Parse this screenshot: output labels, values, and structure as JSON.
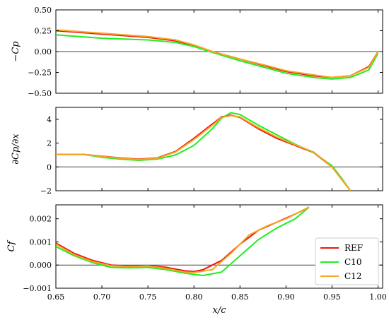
{
  "chart_data": {
    "type": "line",
    "shared_xlabel": "x/c",
    "x_ticks": [
      "0.65",
      "0.70",
      "0.75",
      "0.80",
      "0.85",
      "0.90",
      "0.95",
      "1.00"
    ],
    "xlim": [
      0.65,
      1.005
    ],
    "colors": {
      "REF": "#ee1111",
      "C10": "#22ee22",
      "C12": "#f5a623",
      "zero_line": "#444444"
    },
    "legend": {
      "placement": "lower-right of bottom panel",
      "entries": [
        "REF",
        "C10",
        "C12"
      ]
    },
    "panels": [
      {
        "id": "cp",
        "ylabel": "−Cp",
        "ylim": [
          -0.5,
          0.5
        ],
        "y_ticks": [
          "0.50",
          "0.25",
          "0.00",
          "−0.25",
          "−0.50"
        ],
        "y_tick_values": [
          0.5,
          0.25,
          0.0,
          -0.25,
          -0.5
        ],
        "zero_line": true,
        "series": [
          {
            "name": "REF",
            "points": [
              [
                0.65,
                0.25
              ],
              [
                0.7,
                0.21
              ],
              [
                0.75,
                0.17
              ],
              [
                0.78,
                0.13
              ],
              [
                0.8,
                0.07
              ],
              [
                0.82,
                0.0
              ],
              [
                0.85,
                -0.09
              ],
              [
                0.88,
                -0.18
              ],
              [
                0.9,
                -0.24
              ],
              [
                0.93,
                -0.29
              ],
              [
                0.95,
                -0.31
              ],
              [
                0.97,
                -0.29
              ],
              [
                0.99,
                -0.18
              ],
              [
                1.0,
                0.0
              ]
            ]
          },
          {
            "name": "C10",
            "points": [
              [
                0.65,
                0.2
              ],
              [
                0.7,
                0.16
              ],
              [
                0.75,
                0.14
              ],
              [
                0.78,
                0.11
              ],
              [
                0.8,
                0.06
              ],
              [
                0.82,
                -0.01
              ],
              [
                0.85,
                -0.11
              ],
              [
                0.88,
                -0.2
              ],
              [
                0.9,
                -0.26
              ],
              [
                0.93,
                -0.31
              ],
              [
                0.95,
                -0.33
              ],
              [
                0.97,
                -0.31
              ],
              [
                0.99,
                -0.22
              ],
              [
                1.0,
                -0.02
              ]
            ]
          },
          {
            "name": "C12",
            "points": [
              [
                0.65,
                0.26
              ],
              [
                0.7,
                0.22
              ],
              [
                0.75,
                0.18
              ],
              [
                0.78,
                0.14
              ],
              [
                0.8,
                0.08
              ],
              [
                0.82,
                0.0
              ],
              [
                0.85,
                -0.09
              ],
              [
                0.88,
                -0.17
              ],
              [
                0.9,
                -0.23
              ],
              [
                0.93,
                -0.28
              ],
              [
                0.95,
                -0.31
              ],
              [
                0.97,
                -0.29
              ],
              [
                0.99,
                -0.19
              ],
              [
                1.0,
                0.0
              ]
            ]
          }
        ]
      },
      {
        "id": "dcpdx",
        "ylabel": "∂Cp/∂x",
        "ylim": [
          -2,
          5
        ],
        "y_ticks": [
          "4",
          "2",
          "0",
          "−2"
        ],
        "y_tick_values": [
          4,
          2,
          0,
          -2
        ],
        "zero_line": true,
        "series": [
          {
            "name": "REF",
            "points": [
              [
                0.65,
                1.05
              ],
              [
                0.68,
                1.05
              ],
              [
                0.7,
                0.9
              ],
              [
                0.72,
                0.75
              ],
              [
                0.74,
                0.65
              ],
              [
                0.76,
                0.75
              ],
              [
                0.78,
                1.3
              ],
              [
                0.8,
                2.4
              ],
              [
                0.82,
                3.6
              ],
              [
                0.83,
                4.2
              ],
              [
                0.84,
                4.35
              ],
              [
                0.85,
                4.15
              ],
              [
                0.87,
                3.2
              ],
              [
                0.89,
                2.4
              ],
              [
                0.91,
                1.8
              ],
              [
                0.93,
                1.2
              ],
              [
                0.95,
                0.0
              ],
              [
                0.96,
                -1.0
              ],
              [
                0.97,
                -2.0
              ]
            ]
          },
          {
            "name": "C10",
            "points": [
              [
                0.65,
                1.05
              ],
              [
                0.68,
                1.05
              ],
              [
                0.7,
                0.8
              ],
              [
                0.72,
                0.65
              ],
              [
                0.74,
                0.55
              ],
              [
                0.76,
                0.65
              ],
              [
                0.78,
                1.0
              ],
              [
                0.8,
                1.8
              ],
              [
                0.82,
                3.2
              ],
              [
                0.83,
                4.1
              ],
              [
                0.84,
                4.55
              ],
              [
                0.85,
                4.4
              ],
              [
                0.87,
                3.5
              ],
              [
                0.89,
                2.7
              ],
              [
                0.91,
                1.9
              ],
              [
                0.93,
                1.2
              ],
              [
                0.95,
                0.1
              ],
              [
                0.96,
                -0.9
              ],
              [
                0.97,
                -2.0
              ]
            ]
          },
          {
            "name": "C12",
            "points": [
              [
                0.65,
                1.05
              ],
              [
                0.68,
                1.05
              ],
              [
                0.7,
                0.88
              ],
              [
                0.72,
                0.72
              ],
              [
                0.74,
                0.62
              ],
              [
                0.76,
                0.72
              ],
              [
                0.78,
                1.25
              ],
              [
                0.8,
                2.3
              ],
              [
                0.82,
                3.5
              ],
              [
                0.83,
                4.15
              ],
              [
                0.84,
                4.3
              ],
              [
                0.85,
                4.2
              ],
              [
                0.87,
                3.3
              ],
              [
                0.89,
                2.5
              ],
              [
                0.91,
                1.85
              ],
              [
                0.93,
                1.25
              ],
              [
                0.95,
                0.0
              ],
              [
                0.96,
                -1.0
              ],
              [
                0.97,
                -2.0
              ]
            ]
          }
        ]
      },
      {
        "id": "cf",
        "ylabel": "Cf",
        "ylim": [
          -0.001,
          0.0026
        ],
        "y_ticks": [
          "0.002",
          "0.001",
          "0.000",
          "−0.001"
        ],
        "y_tick_values": [
          0.002,
          0.001,
          0.0,
          -0.001
        ],
        "zero_line": true,
        "series": [
          {
            "name": "REF",
            "points": [
              [
                0.65,
                0.00095
              ],
              [
                0.67,
                0.0005
              ],
              [
                0.69,
                0.0002
              ],
              [
                0.71,
                0.0
              ],
              [
                0.73,
                -5e-05
              ],
              [
                0.75,
                -2e-05
              ],
              [
                0.77,
                -0.0001
              ],
              [
                0.79,
                -0.00025
              ],
              [
                0.8,
                -0.00028
              ],
              [
                0.81,
                -0.0002
              ],
              [
                0.83,
                0.0002
              ],
              [
                0.85,
                0.0009
              ],
              [
                0.87,
                0.0015
              ],
              [
                0.89,
                0.00185
              ],
              [
                0.91,
                0.0022
              ],
              [
                0.925,
                0.0025
              ]
            ]
          },
          {
            "name": "C10",
            "points": [
              [
                0.65,
                0.0008
              ],
              [
                0.67,
                0.0004
              ],
              [
                0.69,
                0.0001
              ],
              [
                0.71,
                -0.0001
              ],
              [
                0.73,
                -0.00012
              ],
              [
                0.75,
                -0.0001
              ],
              [
                0.77,
                -0.0002
              ],
              [
                0.79,
                -0.00035
              ],
              [
                0.81,
                -0.00045
              ],
              [
                0.83,
                -0.0003
              ],
              [
                0.85,
                0.0004
              ],
              [
                0.87,
                0.0011
              ],
              [
                0.89,
                0.0016
              ],
              [
                0.91,
                0.002
              ],
              [
                0.925,
                0.0025
              ]
            ]
          },
          {
            "name": "C12",
            "points": [
              [
                0.65,
                0.0009
              ],
              [
                0.67,
                0.00045
              ],
              [
                0.69,
                0.00015
              ],
              [
                0.71,
                -3e-05
              ],
              [
                0.73,
                -7e-05
              ],
              [
                0.75,
                -4e-05
              ],
              [
                0.77,
                -0.00015
              ],
              [
                0.79,
                -0.0003
              ],
              [
                0.8,
                -0.00032
              ],
              [
                0.82,
                -0.0002
              ],
              [
                0.84,
                0.0005
              ],
              [
                0.86,
                0.0013
              ],
              [
                0.88,
                0.0017
              ],
              [
                0.9,
                0.002
              ],
              [
                0.925,
                0.0025
              ]
            ]
          }
        ]
      }
    ]
  }
}
